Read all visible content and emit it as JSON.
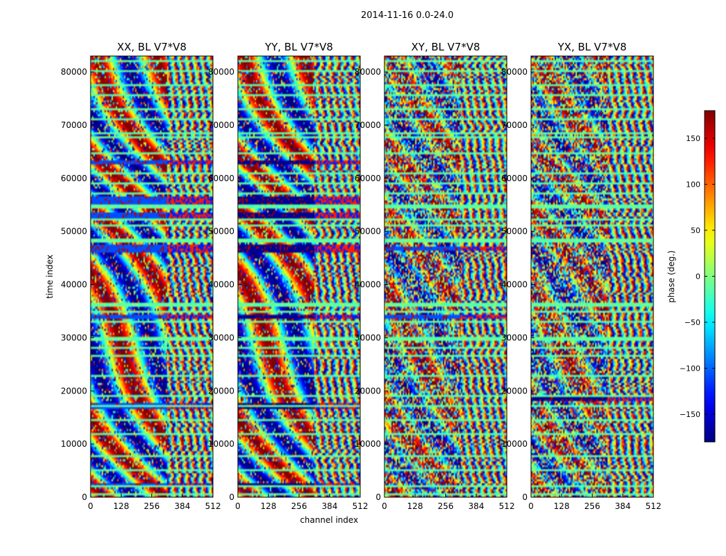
{
  "chart_data": {
    "type": "heatmap",
    "suptitle": "2014-11-16 0.0-24.0",
    "xlabel": "channel index",
    "ylabel": "time index",
    "xlim": [
      0,
      512
    ],
    "ylim": [
      0,
      83000
    ],
    "xticks": [
      0,
      128,
      256,
      384,
      512
    ],
    "yticks": [
      0,
      10000,
      20000,
      30000,
      40000,
      50000,
      60000,
      70000,
      80000
    ],
    "panels": [
      {
        "title": "XX, BL V7*V8",
        "product": "XX",
        "flagged_time_bands": [
          [
            1800,
            2600
          ],
          [
            16500,
            17800
          ],
          [
            46000,
            47500
          ],
          [
            52500,
            53400
          ],
          [
            55000,
            56500
          ],
          [
            62500,
            63500
          ],
          [
            33600,
            34500
          ]
        ]
      },
      {
        "title": "YY, BL V7*V8",
        "product": "YY",
        "flagged_time_bands": [
          [
            1800,
            2600
          ],
          [
            16500,
            17800
          ],
          [
            46000,
            47500
          ],
          [
            52500,
            53400
          ],
          [
            55000,
            56500
          ],
          [
            62500,
            63500
          ],
          [
            33600,
            34500
          ]
        ]
      },
      {
        "title": "XY, BL V7*V8",
        "product": "XY",
        "flagged_time_bands": [
          [
            33600,
            34500
          ],
          [
            46500,
            47200
          ]
        ]
      },
      {
        "title": "YX, BL V7*V8",
        "product": "YX",
        "flagged_time_bands": [
          [
            18200,
            18800
          ]
        ]
      }
    ],
    "colorbar": {
      "label": "phase (deg.)",
      "range": [
        -180,
        180
      ],
      "ticks": [
        -150,
        -100,
        -50,
        0,
        50,
        100,
        150
      ],
      "colormap": "jet"
    },
    "fine_band_boundary_channel": 320,
    "rfi_stripe_times": [
      700,
      2200,
      5200,
      7800,
      11800,
      14500,
      17200,
      19200,
      22800,
      26500,
      28200,
      29800,
      33000,
      35000,
      36200,
      48300,
      51000,
      52400,
      54700,
      57000,
      59000,
      61000,
      64600,
      67800,
      68400,
      71200,
      73000,
      75600,
      77500,
      80200,
      82000
    ]
  }
}
